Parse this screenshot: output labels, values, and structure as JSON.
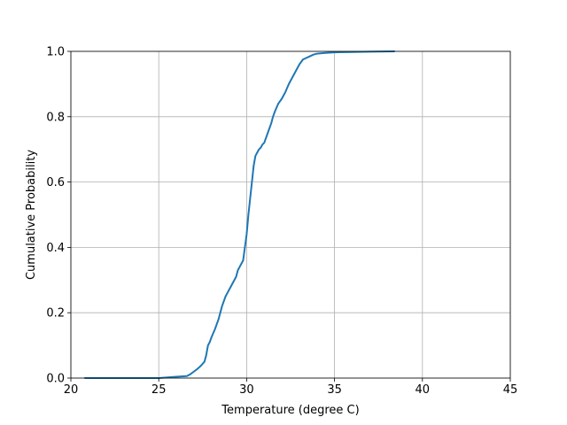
{
  "chart_data": {
    "type": "line",
    "title": "",
    "xlabel": "Temperature (degree C)",
    "ylabel": "Cumulative Probability",
    "xlim": [
      20,
      45
    ],
    "ylim": [
      0,
      1.0
    ],
    "xticks": [
      20,
      25,
      30,
      35,
      40,
      45
    ],
    "yticks": [
      0.0,
      0.2,
      0.4,
      0.6,
      0.8,
      1.0
    ],
    "xtick_labels": [
      "20",
      "25",
      "30",
      "35",
      "40",
      "45"
    ],
    "ytick_labels": [
      "0.0",
      "0.2",
      "0.4",
      "0.6",
      "0.8",
      "1.0"
    ],
    "grid": true,
    "legend": "none",
    "series": [
      {
        "color": "#1f77b4",
        "x": [
          20.8,
          22,
          24,
          25.0,
          25.5,
          26.0,
          26.3,
          26.6,
          26.8,
          27.0,
          27.2,
          27.4,
          27.6,
          27.7,
          27.8,
          27.9,
          28.0,
          28.2,
          28.4,
          28.6,
          28.8,
          28.9,
          29.0,
          29.2,
          29.4,
          29.5,
          29.6,
          29.8,
          29.9,
          30.0,
          30.1,
          30.2,
          30.3,
          30.4,
          30.5,
          30.6,
          30.7,
          30.8,
          30.9,
          31.0,
          31.2,
          31.4,
          31.5,
          31.6,
          31.8,
          32.0,
          32.2,
          32.4,
          32.6,
          32.8,
          33.0,
          33.2,
          33.4,
          33.6,
          33.8,
          34.0,
          34.4,
          35.0,
          36.0,
          37.0,
          38.4
        ],
        "y": [
          0.0,
          0.0,
          0.0,
          0.0,
          0.002,
          0.004,
          0.005,
          0.006,
          0.012,
          0.02,
          0.028,
          0.038,
          0.05,
          0.07,
          0.1,
          0.11,
          0.125,
          0.15,
          0.18,
          0.22,
          0.25,
          0.26,
          0.27,
          0.29,
          0.31,
          0.33,
          0.34,
          0.36,
          0.4,
          0.44,
          0.5,
          0.55,
          0.6,
          0.65,
          0.68,
          0.69,
          0.7,
          0.705,
          0.715,
          0.72,
          0.75,
          0.78,
          0.8,
          0.815,
          0.84,
          0.855,
          0.875,
          0.9,
          0.92,
          0.94,
          0.96,
          0.975,
          0.98,
          0.985,
          0.99,
          0.993,
          0.995,
          0.997,
          0.998,
          0.999,
          1.0
        ]
      }
    ]
  }
}
